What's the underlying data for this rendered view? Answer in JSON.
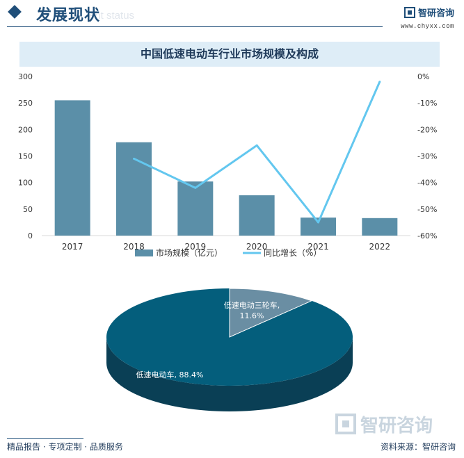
{
  "header": {
    "title": "发展现状",
    "ghost_text": "ent status"
  },
  "brand": {
    "name": "智研咨询",
    "url": "www.chyxx.com"
  },
  "watermark_text": "智研咨询",
  "colors": {
    "bar": "#5b8fa8",
    "line": "#63c7ef",
    "pie_main": "#045e7c",
    "pie_main_side": "#0a3f55",
    "pie_small": "#6a8ea3",
    "title_band": "#deedf7",
    "brand": "#1f4e79"
  },
  "chart_data": [
    {
      "type": "bar",
      "title": "中国低速电动车行业市场规模及构成",
      "categories": [
        "2017",
        "2018",
        "2019",
        "2020",
        "2021",
        "2022"
      ],
      "series": [
        {
          "name": "市场规模（亿元）",
          "type": "bar",
          "axis": "left",
          "values": [
            255,
            176,
            102,
            76,
            34,
            33
          ]
        },
        {
          "name": "同比增长（%）",
          "type": "line",
          "axis": "right",
          "values": [
            null,
            -31,
            -42,
            -26,
            -55,
            -2
          ]
        }
      ],
      "ylim_left": [
        0,
        300
      ],
      "yticks_left": [
        "0",
        "50",
        "100",
        "150",
        "200",
        "250",
        "300"
      ],
      "ylim_right": [
        -60,
        0
      ],
      "yticks_right": [
        "0%",
        "-10%",
        "-20%",
        "-30%",
        "-40%",
        "-50%",
        "-60%"
      ],
      "grid": false,
      "legend_position": "bottom"
    },
    {
      "type": "pie",
      "slices": [
        {
          "label": "低速电动车",
          "value": 88.4,
          "text": "低速电动车, 88.4%"
        },
        {
          "label": "低速电动三轮车",
          "value": 11.6,
          "text": "低速电动三轮车,",
          "text2": "11.6%"
        }
      ]
    }
  ],
  "footer": {
    "left": "精品报告 · 专项定制 · 品质服务",
    "right": "资料来源：智研咨询"
  }
}
